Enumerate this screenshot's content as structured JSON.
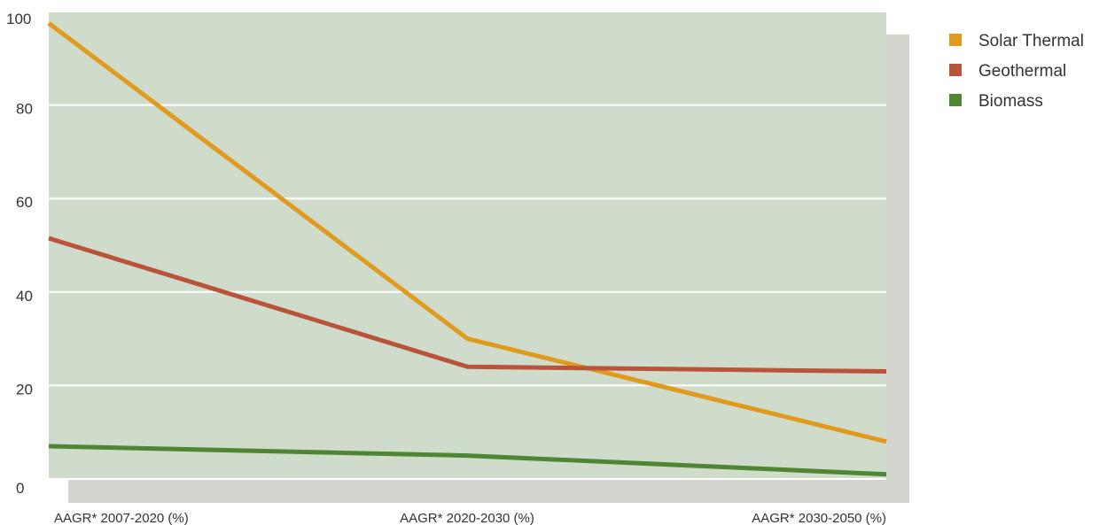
{
  "chart_data": {
    "type": "line",
    "categories": [
      "AAGR* 2007-2020 (%)",
      "AAGR* 2020-2030 (%)",
      "AAGR* 2030-2050 (%)"
    ],
    "series": [
      {
        "name": "Solar Thermal",
        "color": "#E09A1E",
        "values": [
          97.5,
          30,
          8
        ]
      },
      {
        "name": "Geothermal",
        "color": "#B9533A",
        "values": [
          51.5,
          24,
          23
        ]
      },
      {
        "name": "Biomass",
        "color": "#4F8533",
        "values": [
          7,
          5,
          1
        ]
      }
    ],
    "yticks": [
      0,
      20,
      40,
      60,
      80,
      100
    ],
    "ylim": [
      0,
      100
    ],
    "grid": true,
    "legend_position": "top-right",
    "colors": {
      "plot_background": "#CFDCCB",
      "shadow": "#D4D4CF",
      "grid": "#FFFFFF"
    }
  }
}
